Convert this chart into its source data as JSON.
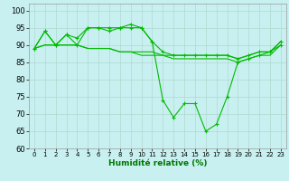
{
  "xlabel": "Humidité relative (%)",
  "background_color": "#c8f0f0",
  "grid_color": "#b0d8d0",
  "line_color": "#00bb00",
  "xlim": [
    -0.5,
    23.5
  ],
  "ylim": [
    60,
    102
  ],
  "yticks": [
    60,
    65,
    70,
    75,
    80,
    85,
    90,
    95,
    100
  ],
  "xticks": [
    0,
    1,
    2,
    3,
    4,
    5,
    6,
    7,
    8,
    9,
    10,
    11,
    12,
    13,
    14,
    15,
    16,
    17,
    18,
    19,
    20,
    21,
    22,
    23
  ],
  "s1": [
    89,
    94,
    90,
    93,
    90,
    95,
    95,
    95,
    95,
    95,
    95,
    91,
    74,
    69,
    73,
    73,
    65,
    67,
    75,
    85,
    86,
    87,
    88,
    90
  ],
  "s2": [
    89,
    94,
    90,
    93,
    92,
    95,
    95,
    94,
    95,
    96,
    95,
    91,
    88,
    87,
    87,
    87,
    87,
    87,
    87,
    86,
    87,
    88,
    88,
    91
  ],
  "s3": [
    89,
    90,
    90,
    90,
    90,
    89,
    89,
    89,
    88,
    88,
    88,
    88,
    87,
    87,
    87,
    87,
    87,
    87,
    87,
    86,
    87,
    88,
    88,
    91
  ],
  "s4": [
    89,
    90,
    90,
    90,
    90,
    89,
    89,
    89,
    88,
    88,
    87,
    87,
    87,
    86,
    86,
    86,
    86,
    86,
    86,
    85,
    86,
    87,
    87,
    90
  ]
}
